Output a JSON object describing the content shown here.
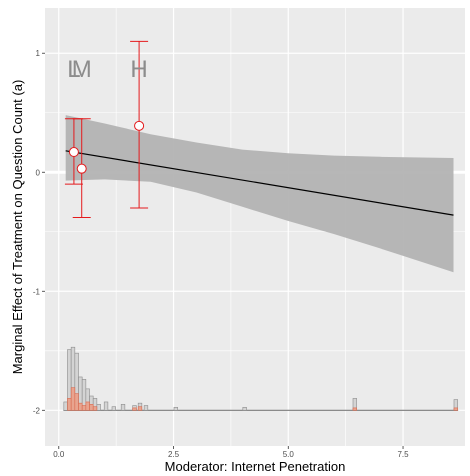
{
  "chart_data": {
    "type": "line",
    "xlabel": "Moderator: Internet Penetration",
    "ylabel": "Marginal Effect of Treatment on Question Count (a)",
    "xlim": [
      -0.3,
      8.85
    ],
    "ylim": [
      -2.3,
      1.38
    ],
    "x_ticks": [
      0,
      2.5,
      5,
      7.5
    ],
    "x_tick_labels": [
      "0.0",
      "2.5",
      "5.0",
      "7.5"
    ],
    "y_ticks": [
      -2,
      -1,
      0,
      1
    ],
    "y_tick_labels": [
      "-2",
      "-1",
      "0",
      "1"
    ],
    "grid": true,
    "linear_estimate": [
      {
        "x": 0.15,
        "y": 0.18
      },
      {
        "x": 8.6,
        "y": -0.36
      }
    ],
    "confidence_band": [
      {
        "x": 0.15,
        "lower": -0.07,
        "upper": 0.48
      },
      {
        "x": 1.0,
        "lower": -0.06,
        "upper": 0.41
      },
      {
        "x": 2.0,
        "lower": -0.08,
        "upper": 0.32
      },
      {
        "x": 3.0,
        "lower": -0.17,
        "upper": 0.25
      },
      {
        "x": 4.0,
        "lower": -0.29,
        "upper": 0.19
      },
      {
        "x": 5.0,
        "lower": -0.41,
        "upper": 0.16
      },
      {
        "x": 6.0,
        "lower": -0.52,
        "upper": 0.14
      },
      {
        "x": 7.0,
        "lower": -0.64,
        "upper": 0.13
      },
      {
        "x": 8.6,
        "lower": -0.84,
        "upper": 0.12
      }
    ],
    "binned_estimates": [
      {
        "label": "L",
        "x": 0.33,
        "y": 0.17,
        "lower": -0.1,
        "upper": 0.45
      },
      {
        "label": "M",
        "x": 0.5,
        "y": 0.03,
        "lower": -0.38,
        "upper": 0.45
      },
      {
        "label": "H",
        "x": 1.75,
        "y": 0.39,
        "lower": -0.3,
        "upper": 1.1
      }
    ],
    "histogram": {
      "baseline": -2.0,
      "control_bins": [
        {
          "x": 0.15,
          "h": 0.07
        },
        {
          "x": 0.23,
          "h": 0.51
        },
        {
          "x": 0.31,
          "h": 0.53
        },
        {
          "x": 0.39,
          "h": 0.48
        },
        {
          "x": 0.47,
          "h": 0.28
        },
        {
          "x": 0.55,
          "h": 0.26
        },
        {
          "x": 0.63,
          "h": 0.18
        },
        {
          "x": 0.71,
          "h": 0.12
        },
        {
          "x": 0.79,
          "h": 0.1
        },
        {
          "x": 0.87,
          "h": 0.05
        },
        {
          "x": 1.03,
          "h": 0.07
        },
        {
          "x": 1.2,
          "h": 0.03
        },
        {
          "x": 1.4,
          "h": 0.05
        },
        {
          "x": 1.65,
          "h": 0.04
        },
        {
          "x": 1.77,
          "h": 0.06
        },
        {
          "x": 1.9,
          "h": 0.04
        },
        {
          "x": 2.55,
          "h": 0.025
        },
        {
          "x": 4.05,
          "h": 0.025
        },
        {
          "x": 6.45,
          "h": 0.1
        },
        {
          "x": 8.65,
          "h": 0.09
        }
      ],
      "treatment_bins": [
        {
          "x": 0.23,
          "h": 0.1
        },
        {
          "x": 0.31,
          "h": 0.19
        },
        {
          "x": 0.39,
          "h": 0.14
        },
        {
          "x": 0.47,
          "h": 0.06
        },
        {
          "x": 0.55,
          "h": 0.04
        },
        {
          "x": 0.63,
          "h": 0.07
        },
        {
          "x": 0.71,
          "h": 0.05
        },
        {
          "x": 0.79,
          "h": 0.03
        },
        {
          "x": 1.65,
          "h": 0.02
        },
        {
          "x": 1.77,
          "h": 0.03
        },
        {
          "x": 6.45,
          "h": 0.02
        },
        {
          "x": 8.65,
          "h": 0.02
        }
      ]
    },
    "colors": {
      "panel_background": "#ebebeb",
      "gridline": "#ffffff",
      "band": "#b3b3b3",
      "estimate_line": "#000000",
      "error_bars": "#e41a1c",
      "letters": "#8c8c8c",
      "hist_control_fill": "#d4d4d4",
      "hist_control_stroke": "#8c8c8c",
      "hist_treatment_fill": "#e8a48f",
      "hist_treatment_stroke": "#d9694e"
    }
  }
}
